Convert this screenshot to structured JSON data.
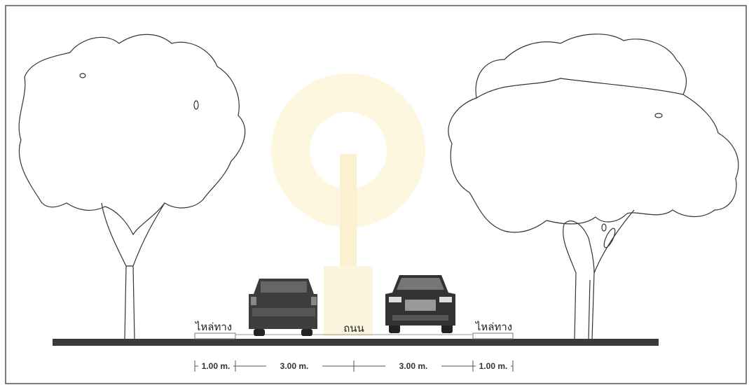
{
  "labels": {
    "left_shoulder": "ไหล่ทาง",
    "road": "ถนน",
    "right_shoulder": "ไหล่ทาง"
  },
  "dimensions": [
    "1.00 m.",
    "3.00 m.",
    "3.00 m.",
    "1.00 m."
  ]
}
